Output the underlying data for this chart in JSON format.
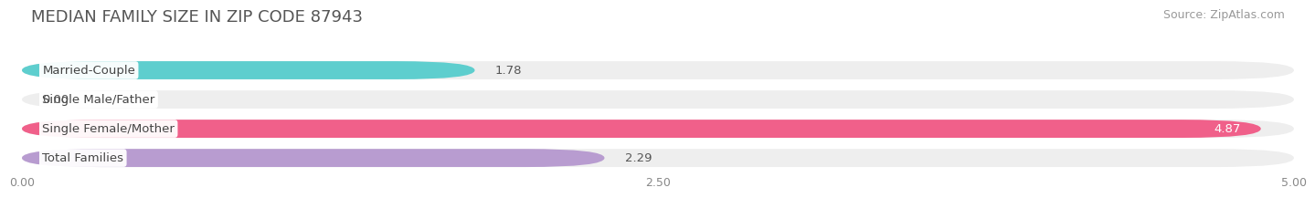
{
  "title": "MEDIAN FAMILY SIZE IN ZIP CODE 87943",
  "source": "Source: ZipAtlas.com",
  "categories": [
    "Married-Couple",
    "Single Male/Father",
    "Single Female/Mother",
    "Total Families"
  ],
  "values": [
    1.78,
    0.0,
    4.87,
    2.29
  ],
  "bar_colors": [
    "#5ecece",
    "#aab8e8",
    "#f0608a",
    "#b89cd0"
  ],
  "xlim": [
    0,
    5.0
  ],
  "xticks": [
    0.0,
    2.5,
    5.0
  ],
  "xticklabels": [
    "0.00",
    "2.50",
    "5.00"
  ],
  "background_color": "#ffffff",
  "bar_background_color": "#eeeeee",
  "title_fontsize": 13,
  "source_fontsize": 9,
  "label_fontsize": 9.5,
  "value_fontsize": 9.5
}
